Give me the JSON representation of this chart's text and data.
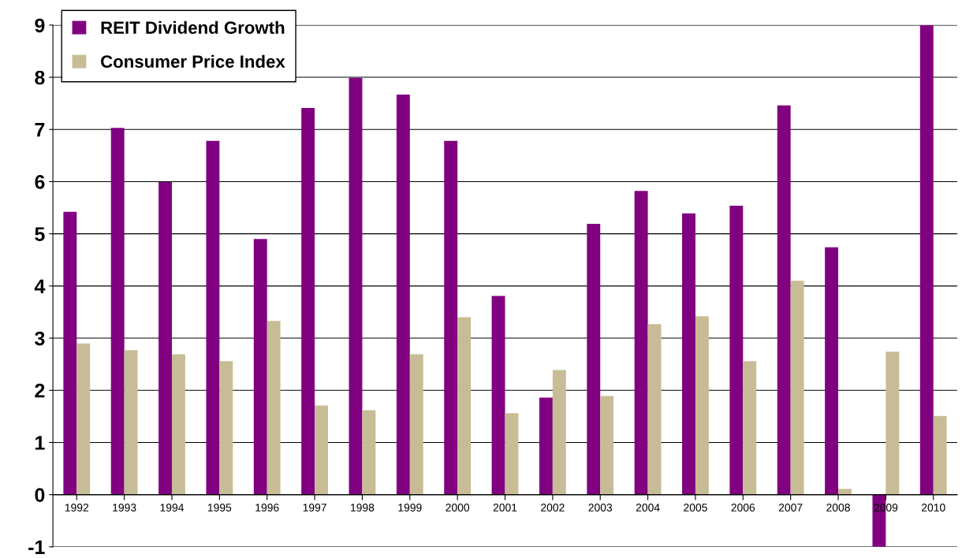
{
  "chart_data": {
    "type": "bar",
    "categories": [
      "1992",
      "1993",
      "1994",
      "1995",
      "1996",
      "1997",
      "1998",
      "1999",
      "2000",
      "2001",
      "2002",
      "2003",
      "2004",
      "2005",
      "2006",
      "2007",
      "2008",
      "2009",
      "2010"
    ],
    "series": [
      {
        "name": "REIT Dividend Growth",
        "color": "#800080",
        "values": [
          5.42,
          7.03,
          5.99,
          6.78,
          4.9,
          7.41,
          7.99,
          7.67,
          6.78,
          3.81,
          1.86,
          5.19,
          5.82,
          5.39,
          5.54,
          7.46,
          4.74,
          -1,
          9
        ]
      },
      {
        "name": "Consumer Price Index",
        "color": "#c8bc96",
        "values": [
          2.9,
          2.77,
          2.69,
          2.56,
          3.33,
          1.71,
          1.62,
          2.69,
          3.4,
          1.56,
          2.39,
          1.89,
          3.27,
          3.42,
          2.56,
          4.1,
          0.11,
          2.74,
          1.51
        ]
      }
    ],
    "ylim": [
      -1,
      9
    ],
    "yticks": [
      -1,
      0,
      1,
      2,
      3,
      4,
      5,
      6,
      7,
      8,
      9
    ],
    "grid": "y",
    "legend": "top left"
  }
}
